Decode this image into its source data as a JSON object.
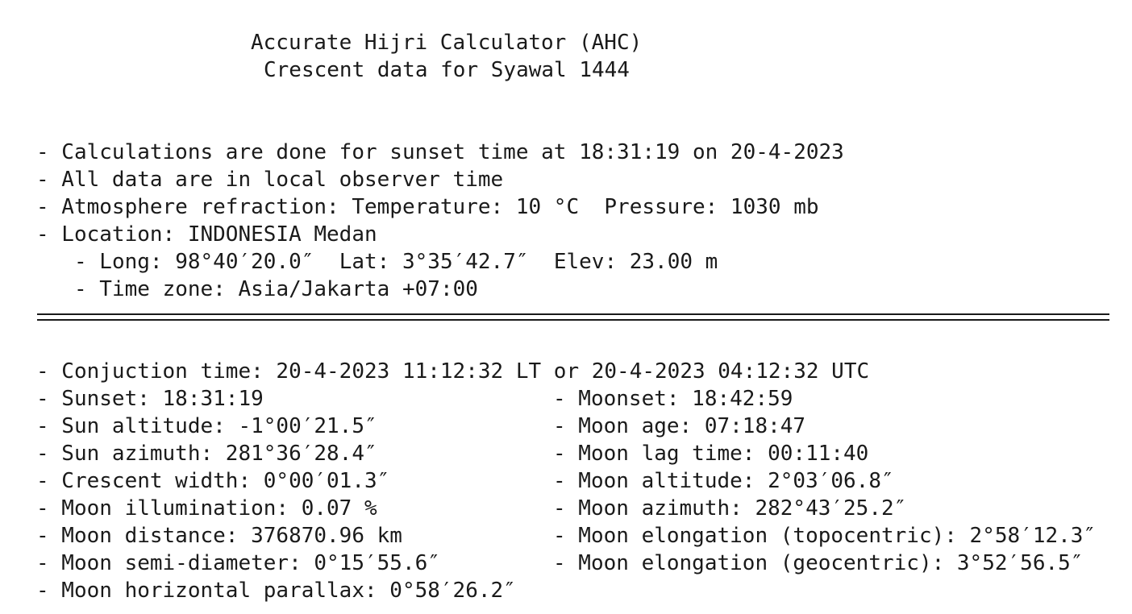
{
  "header": {
    "title": "Accurate Hijri Calculator (AHC)",
    "subtitle": "Crescent data for Syawal 1444"
  },
  "info": {
    "calc": "- Calculations are done for sunset time at 18:31:19 on 20-4-2023",
    "local_time": "- All data are in local observer time",
    "atmosphere": "- Atmosphere refraction: Temperature: 10 °C  Pressure: 1030 mb",
    "location": "- Location: INDONESIA Medan",
    "coords": "- Long: 98°40′20.0″  Lat: 3°35′42.7″  Elev: 23.00 m",
    "timezone": "- Time zone: Asia/Jakarta +07:00"
  },
  "data": {
    "conjunction": "- Conjuction time: 20-4-2023 11:12:32 LT or 20-4-2023 04:12:32 UTC",
    "left": [
      "- Sunset: 18:31:19",
      "- Sun altitude: -1°00′21.5″",
      "- Sun azimuth: 281°36′28.4″",
      "- Crescent width: 0°00′01.3″",
      "- Moon illumination: 0.07 %",
      "- Moon distance: 376870.96 km",
      "- Moon semi-diameter: 0°15′55.6″",
      "- Moon horizontal parallax: 0°58′26.2″"
    ],
    "right": [
      "- Moonset: 18:42:59",
      "- Moon age: 07:18:47",
      "- Moon lag time: 00:11:40",
      "- Moon altitude: 2°03′06.8″",
      "- Moon azimuth: 282°43′25.2″",
      "- Moon elongation (topocentric): 2°58′12.3″",
      "- Moon elongation (geocentric): 3°52′56.5″"
    ]
  }
}
